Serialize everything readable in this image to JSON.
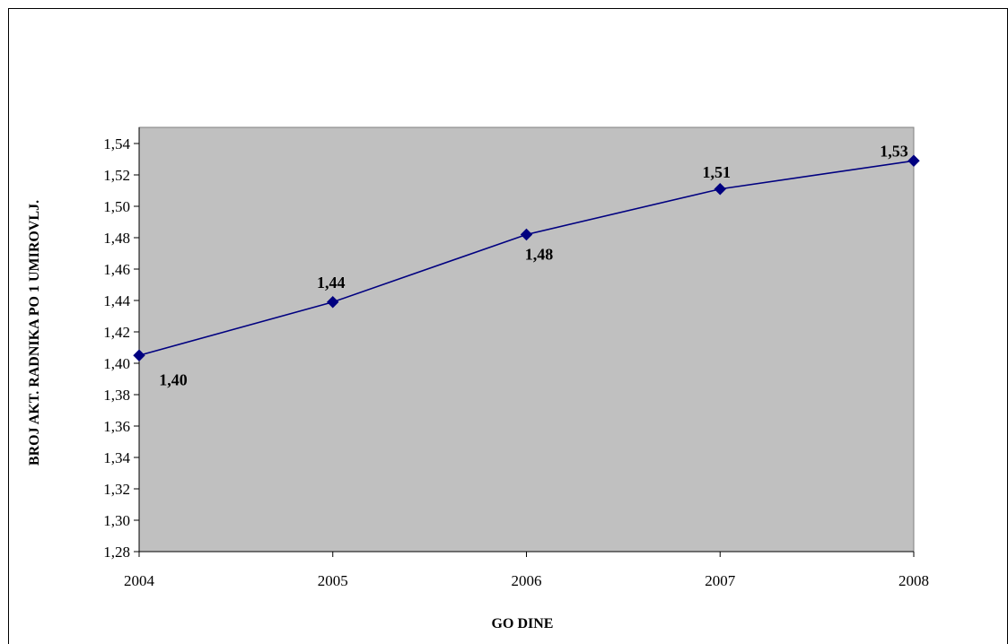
{
  "chart_data": {
    "type": "line",
    "title": "",
    "xlabel": "GO DINE",
    "ylabel": "BROJ AKT. RADNIKA  PO 1 UMIROVLJ.",
    "categories": [
      "2004",
      "2005",
      "2006",
      "2007",
      "2008"
    ],
    "series": [
      {
        "values": [
          1.405,
          1.439,
          1.482,
          1.511,
          1.529
        ],
        "data_labels": [
          "1,40",
          "1,44",
          "1,48",
          "1,51",
          "1,53"
        ],
        "color": "#000080",
        "marker": "diamond"
      }
    ],
    "y_ticks": [
      "1,28",
      "1,30",
      "1,32",
      "1,34",
      "1,36",
      "1,38",
      "1,40",
      "1,42",
      "1,44",
      "1,46",
      "1,48",
      "1,50",
      "1,52",
      "1,54"
    ],
    "ylim": [
      1.28,
      1.54
    ],
    "grid": false,
    "legend": "none",
    "plot_background": "#c0c0c0"
  }
}
